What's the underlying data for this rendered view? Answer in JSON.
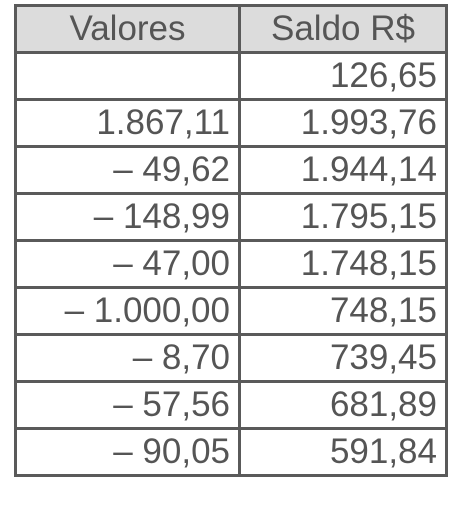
{
  "table": {
    "headers": [
      "Valores",
      "Saldo R$"
    ],
    "rows": [
      [
        "",
        "126,65"
      ],
      [
        "1.867,11",
        "1.993,76"
      ],
      [
        "– 49,62",
        "1.944,14"
      ],
      [
        "– 148,99",
        "1.795,15"
      ],
      [
        "– 47,00",
        "1.748,15"
      ],
      [
        "– 1.000,00",
        "748,15"
      ],
      [
        "– 8,70",
        "739,45"
      ],
      [
        "– 57,56",
        "681,89"
      ],
      [
        "– 90,05",
        "591,84"
      ]
    ]
  },
  "colors": {
    "header_bg": "#dcdcdc",
    "border": "#5a5a5a",
    "text": "#555555"
  }
}
